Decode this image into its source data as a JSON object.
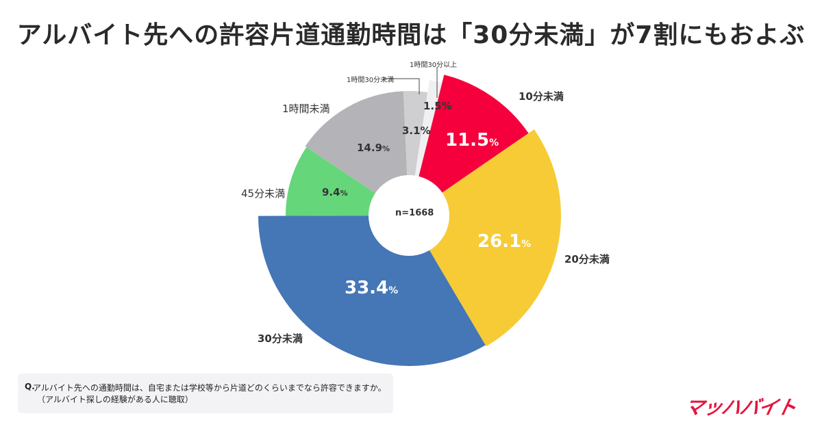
{
  "title": "アルバイト先への許容片道通勤時間は「30分未満」が7割にもおよぶ",
  "center_label": "n=1668",
  "question": {
    "prefix": "Q.",
    "line1": "アルバイト先への通勤時間は、自宅または学校等から片道どのくらいまでなら許容できますか。",
    "line2": "（アルバイト探しの経験がある人に聴取）"
  },
  "logo": "マッハバイト",
  "labels": {
    "s0": "10分未満",
    "s1": "20分未満",
    "s2": "30分未満",
    "s3": "45分未満",
    "s4": "1時間未満",
    "s5": "1時間30分未満",
    "s6": "1時間30分以上"
  },
  "values_text": {
    "s0": "11.5",
    "s1": "26.1",
    "s2": "33.4",
    "s3": "9.4",
    "s4": "14.9",
    "s5": "3.1",
    "s6": "1.5",
    "pct": "%"
  },
  "chart_data": {
    "type": "pie",
    "title": "アルバイト先への許容片道通勤時間は「30分未満」が7割にもおよぶ",
    "categories": [
      "10分未満",
      "20分未満",
      "30分未満",
      "45分未満",
      "1時間未満",
      "1時間30分未満",
      "1時間30分以上"
    ],
    "values": [
      11.5,
      26.1,
      33.4,
      9.4,
      14.9,
      3.1,
      1.5
    ],
    "unit": "%",
    "colors": [
      "#f5003c",
      "#f6cb35",
      "#4576b6",
      "#65d67a",
      "#b4b3b7",
      "#cfcfd2",
      "#f0f0f2"
    ],
    "sample_size": "n=1668",
    "donut": true
  }
}
